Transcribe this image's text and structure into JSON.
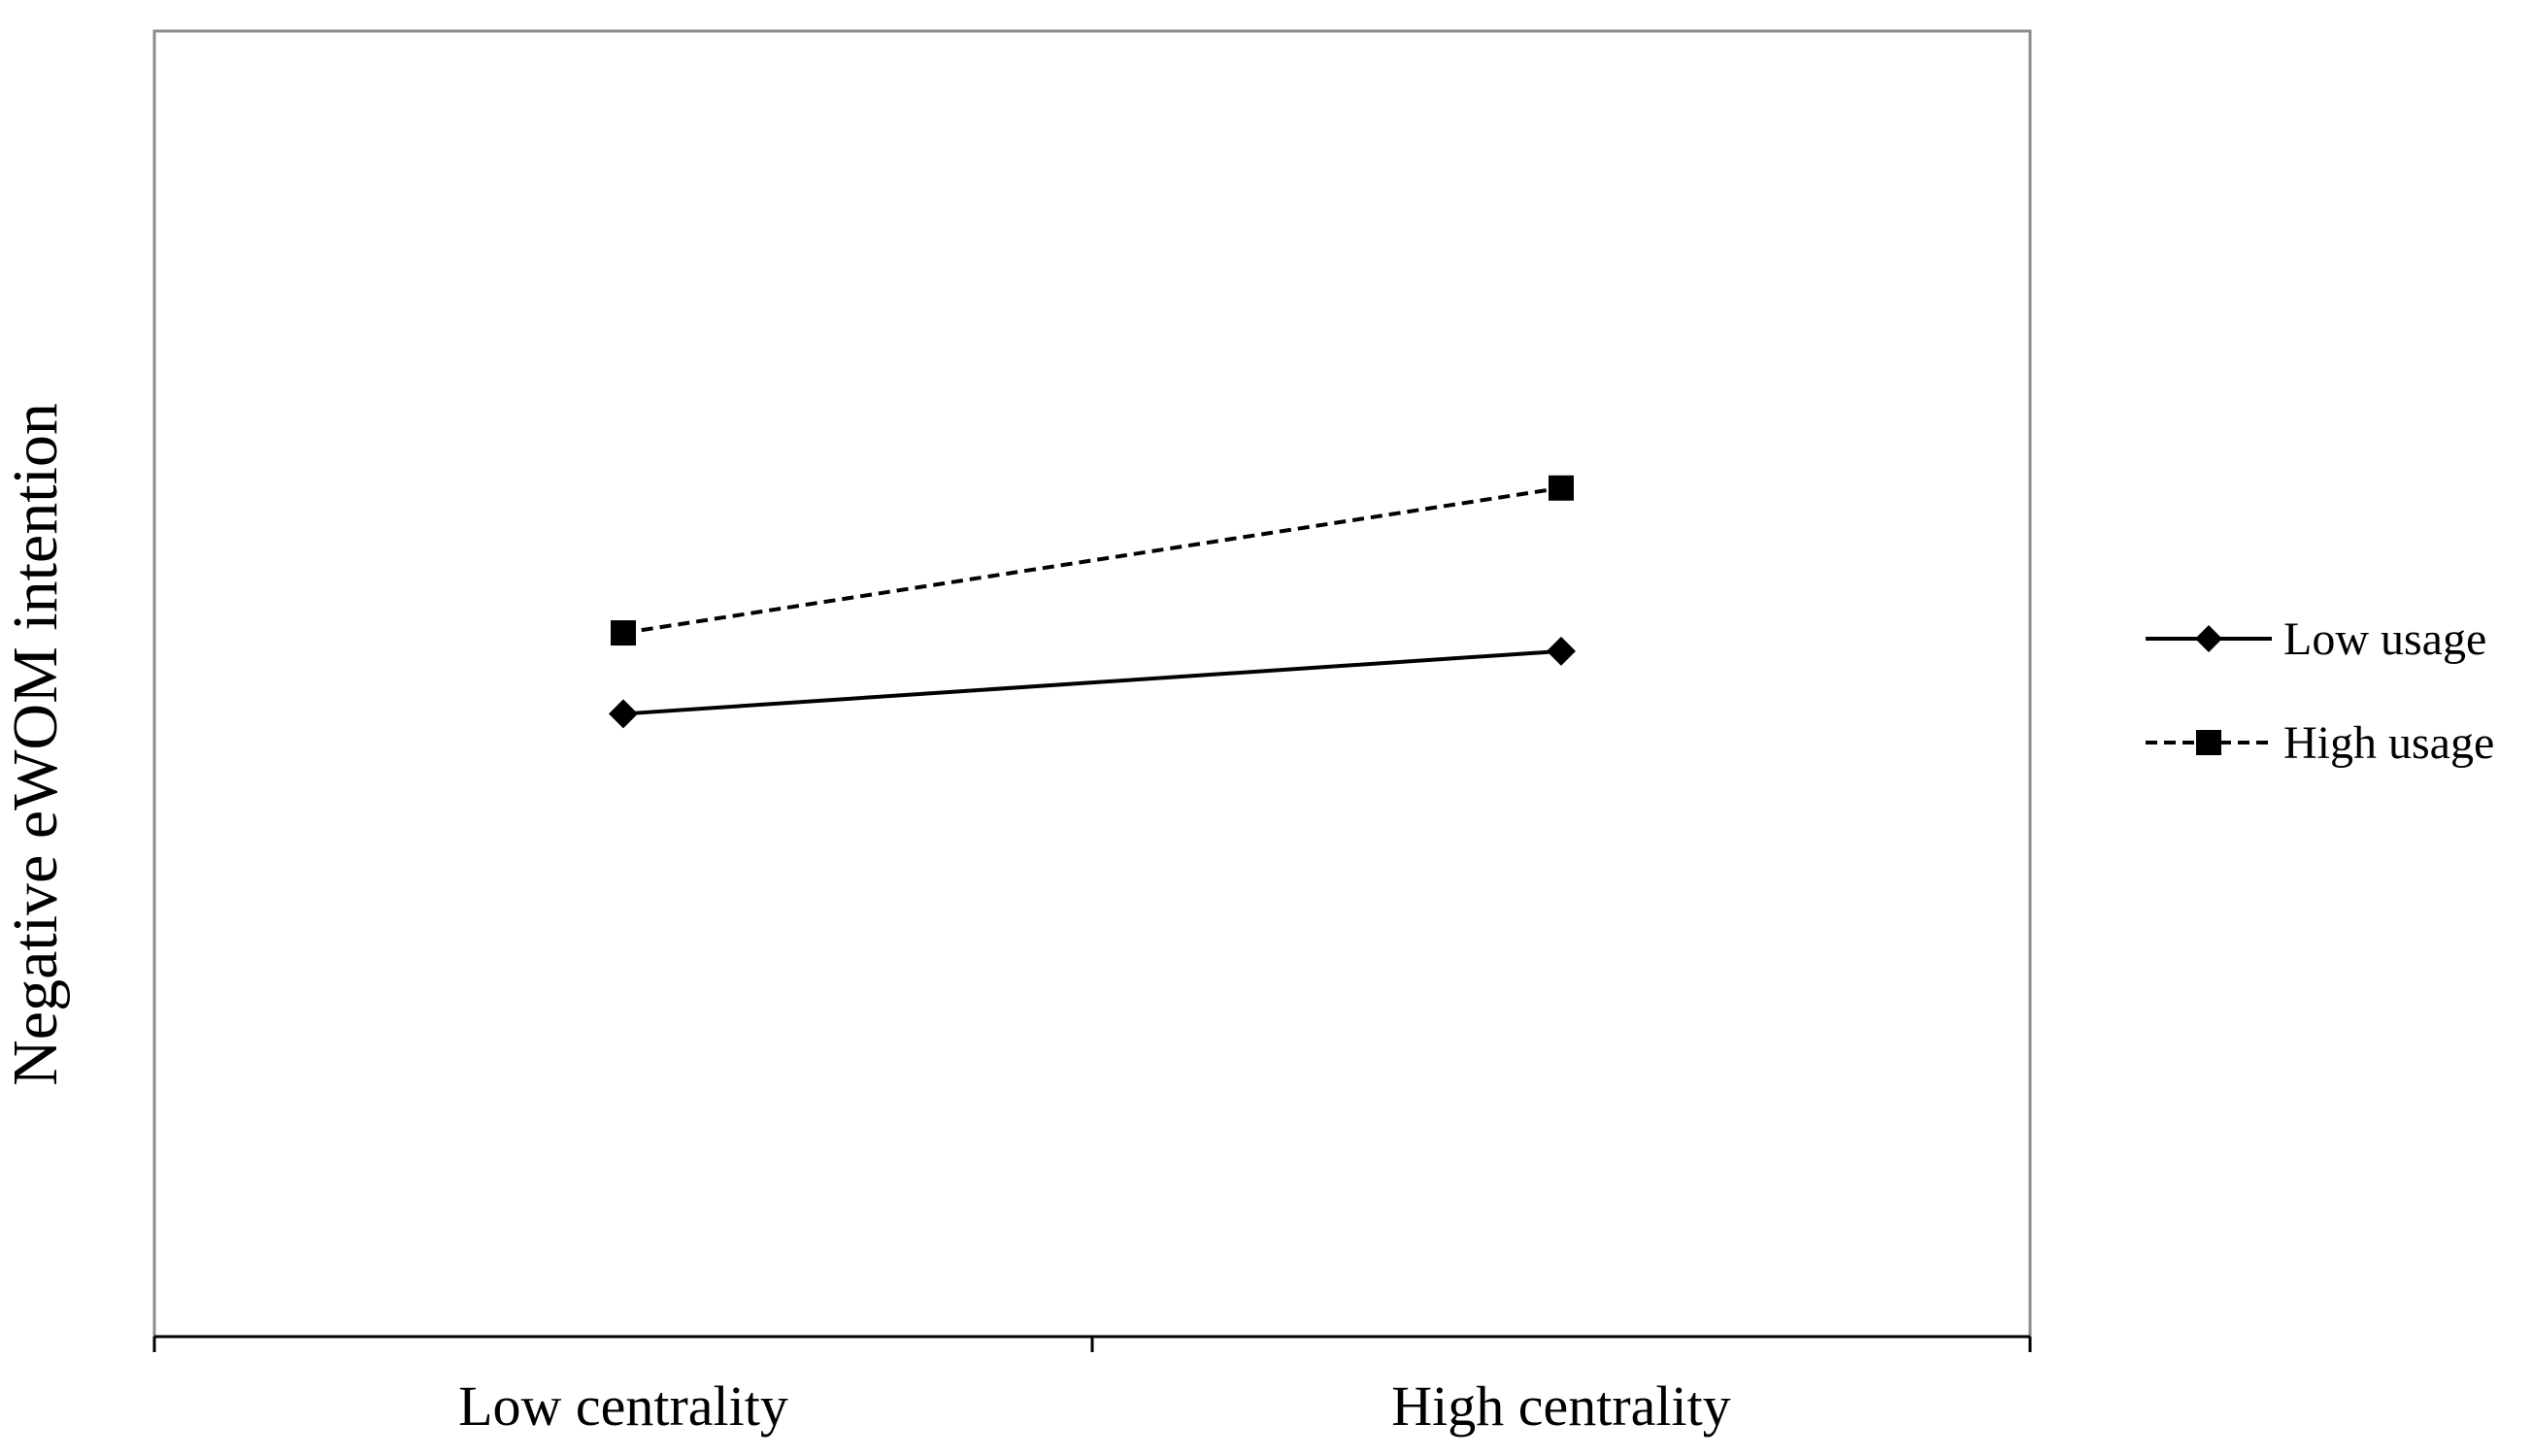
{
  "chart_data": {
    "type": "line",
    "categories": [
      "Low centrality",
      "High centrality"
    ],
    "xlabel": "",
    "ylabel": "Negative eWOM intention",
    "ylim": [
      0,
      100
    ],
    "grid": false,
    "legend_position": "right",
    "series": [
      {
        "name": "Low usage",
        "values": [
          47.7,
          52.5
        ],
        "marker": "diamond",
        "line_style": "solid",
        "color": "#000000"
      },
      {
        "name": "High usage",
        "values": [
          53.9,
          65.0
        ],
        "marker": "square",
        "line_style": "dashed",
        "color": "#000000"
      }
    ]
  }
}
